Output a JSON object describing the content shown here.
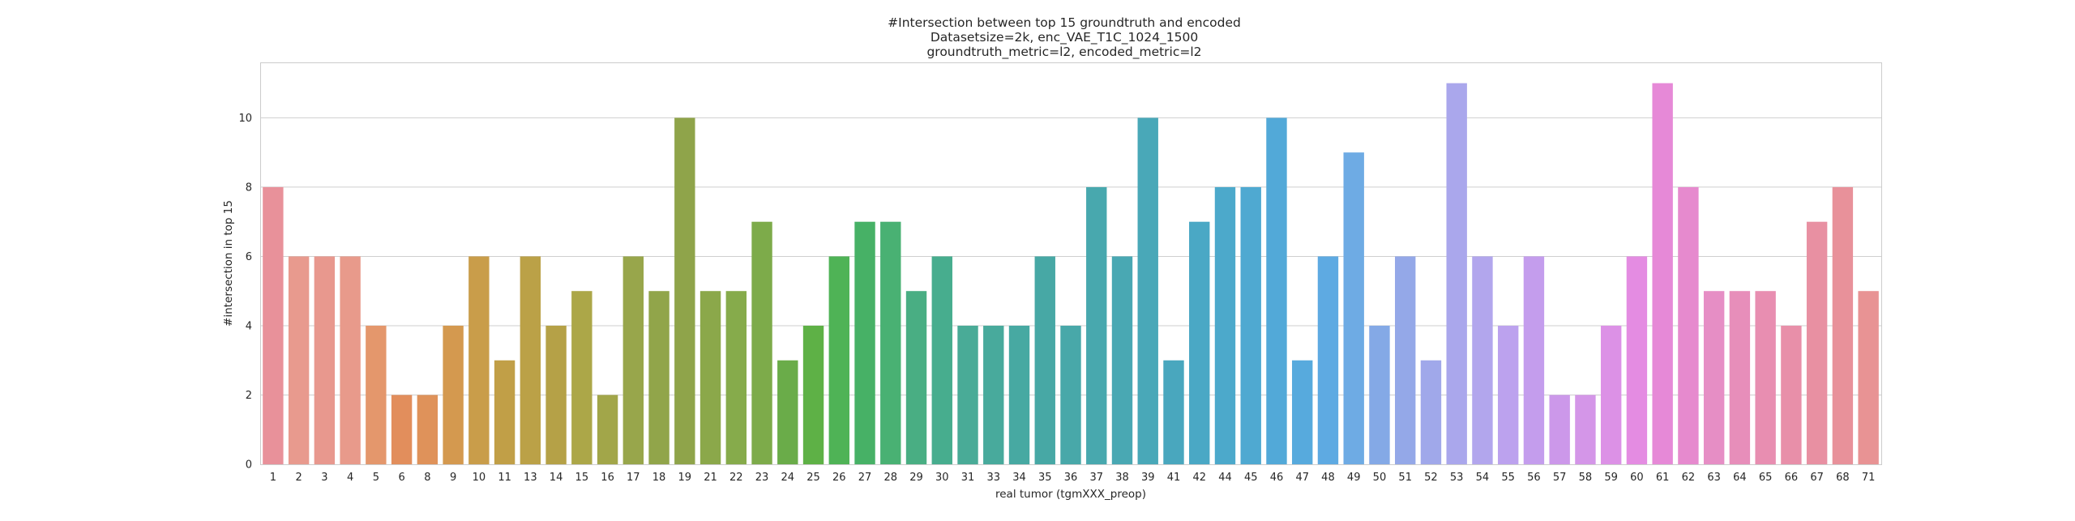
{
  "chart_data": {
    "type": "bar",
    "title": [
      "#Intersection between top 15 groundtruth and encoded",
      "Datasetsize=2k, enc_VAE_T1C_1024_1500",
      "groundtruth_metric=l2, encoded_metric=l2"
    ],
    "xlabel": "real tumor (tgmXXX_preop)",
    "ylabel": "#intersection in top 15",
    "ylim": [
      0,
      11.6
    ],
    "yticks": [
      0,
      2,
      4,
      6,
      8,
      10
    ],
    "grid": true,
    "categories": [
      "1",
      "2",
      "3",
      "4",
      "5",
      "6",
      "8",
      "9",
      "10",
      "11",
      "13",
      "14",
      "15",
      "16",
      "17",
      "18",
      "19",
      "21",
      "22",
      "23",
      "24",
      "25",
      "26",
      "27",
      "28",
      "29",
      "30",
      "31",
      "33",
      "34",
      "35",
      "36",
      "37",
      "38",
      "39",
      "41",
      "42",
      "44",
      "45",
      "46",
      "47",
      "48",
      "49",
      "50",
      "51",
      "52",
      "53",
      "54",
      "55",
      "56",
      "57",
      "58",
      "59",
      "60",
      "61",
      "62",
      "63",
      "64",
      "65",
      "66",
      "67",
      "68",
      "71"
    ],
    "values": [
      8,
      6,
      6,
      6,
      4,
      2,
      2,
      4,
      6,
      3,
      6,
      4,
      5,
      2,
      6,
      5,
      10,
      5,
      5,
      7,
      3,
      4,
      6,
      7,
      7,
      5,
      6,
      4,
      4,
      4,
      6,
      4,
      8,
      6,
      10,
      3,
      7,
      8,
      8,
      10,
      3,
      6,
      9,
      4,
      6,
      3,
      11,
      6,
      4,
      6,
      2,
      2,
      4,
      6,
      11,
      8,
      5,
      5,
      5,
      4,
      7,
      8,
      5
    ],
    "colors": [
      "#e8919a",
      "#e89a8e",
      "#e8988e",
      "#e89a8b",
      "#e4976c",
      "#e28e5c",
      "#df925a",
      "#d4994f",
      "#c99d4a",
      "#c19f47",
      "#bba147",
      "#b5a147",
      "#aca748",
      "#a2a649",
      "#98a64b",
      "#91a54a",
      "#8fa44a",
      "#8ba84a",
      "#86ab4b",
      "#7dab4a",
      "#6aac49",
      "#5eb146",
      "#4fb356",
      "#47b166",
      "#49b173",
      "#49ae83",
      "#47ad8e",
      "#49ab97",
      "#48aa9c",
      "#47a9a2",
      "#47a8a5",
      "#48a8a9",
      "#48a8ae",
      "#49a8b3",
      "#49a8b8",
      "#49a7be",
      "#4aa8c5",
      "#4ca9cb",
      "#4fa9d1",
      "#52a9d8",
      "#57aadd",
      "#5eaae2",
      "#6eabe4",
      "#84a9e6",
      "#94a8e8",
      "#a0a8ea",
      "#aaa7ec",
      "#b2a6ed",
      "#bca2ee",
      "#c49ded",
      "#cc98ea",
      "#d496e8",
      "#dc91e6",
      "#e48ce2",
      "#e689d7",
      "#e68ace",
      "#e68ec5",
      "#e78eba",
      "#e88eb1",
      "#e88fa9",
      "#e890a2",
      "#e8919a",
      "#e89394"
    ]
  }
}
